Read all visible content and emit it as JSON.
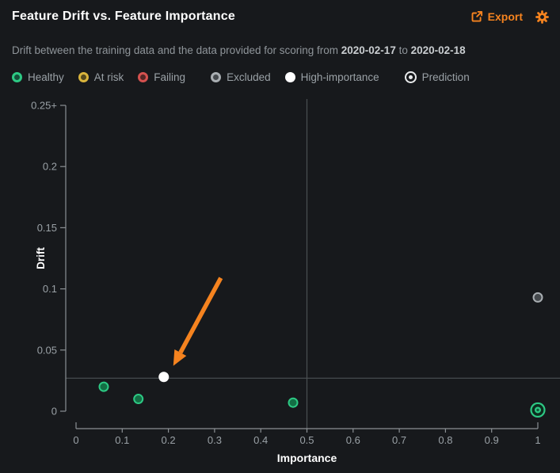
{
  "header": {
    "title": "Feature Drift vs. Feature Importance",
    "export_label": "Export"
  },
  "subtitle": {
    "prefix": "Drift between the training data and the data provided for scoring from",
    "start_date": "2020-02-17",
    "connector": "to",
    "end_date": "2020-02-18"
  },
  "colors": {
    "accent_orange": "#f5831f",
    "healthy_ring": "#2dc984",
    "healthy_fill": "#136f45",
    "at_risk_ring": "#d9b43c",
    "at_risk_fill": "#5f511c",
    "failing_ring": "#d5514f",
    "failing_fill": "#5f2826",
    "excluded_ring": "#a9aeb2",
    "excluded_fill": "#45494d",
    "high_importance": "#ffffff",
    "axis": "#8b9094",
    "tick_text": "#9aa1a6",
    "threshold_line": "#4b5053",
    "background": "#17191c"
  },
  "legend": [
    {
      "label": "Healthy",
      "marker": "donut",
      "ring": "#2dc984",
      "fill": "#14503a",
      "group_start": false
    },
    {
      "label": "At risk",
      "marker": "donut",
      "ring": "#d9b43c",
      "fill": "#564a1d",
      "group_start": false
    },
    {
      "label": "Failing",
      "marker": "donut",
      "ring": "#d5514f",
      "fill": "#552625",
      "group_start": false
    },
    {
      "label": "Excluded",
      "marker": "donut",
      "ring": "#a9aeb2",
      "fill": "#45494d",
      "group_start": true
    },
    {
      "label": "High-importance",
      "marker": "solid",
      "ring": "#ffffff",
      "fill": "#ffffff",
      "group_start": false
    },
    {
      "label": "Prediction",
      "marker": "target",
      "ring": "#e9ebec",
      "fill": "#e9ebec",
      "group_start": true
    }
  ],
  "chart_data": {
    "type": "scatter",
    "title": "Feature Drift vs. Feature Importance",
    "xlabel": "Importance",
    "ylabel": "Drift",
    "xlim": [
      0,
      1
    ],
    "ylim": [
      0,
      0.25
    ],
    "x_ticks": [
      "0",
      "0.1",
      "0.2",
      "0.3",
      "0.4",
      "0.5",
      "0.6",
      "0.7",
      "0.8",
      "0.9",
      "1"
    ],
    "y_ticks": [
      "0",
      "0.05",
      "0.1",
      "0.15",
      "0.2",
      "0.25+"
    ],
    "grid": false,
    "legend_entries": [
      "Healthy",
      "At risk",
      "Failing",
      "Excluded",
      "High-importance",
      "Prediction"
    ],
    "thresholds": {
      "importance": 0.5,
      "drift": 0.027
    },
    "points": [
      {
        "importance": 0.06,
        "drift": 0.02,
        "status": "healthy",
        "marker": "dot"
      },
      {
        "importance": 0.135,
        "drift": 0.01,
        "status": "healthy",
        "marker": "dot"
      },
      {
        "importance": 0.47,
        "drift": 0.007,
        "status": "healthy",
        "marker": "dot"
      },
      {
        "importance": 1.0,
        "drift": 0.001,
        "status": "healthy",
        "marker": "prediction"
      },
      {
        "importance": 0.19,
        "drift": 0.028,
        "status": "high-importance",
        "marker": "dot"
      },
      {
        "importance": 1.0,
        "drift": 0.093,
        "status": "excluded",
        "marker": "dot"
      }
    ],
    "annotation_arrow": {
      "color": "#f5831f",
      "points_to_index": 4,
      "tip_offset": [
        12,
        -14
      ],
      "tail_offset": [
        60,
        -111
      ]
    }
  }
}
